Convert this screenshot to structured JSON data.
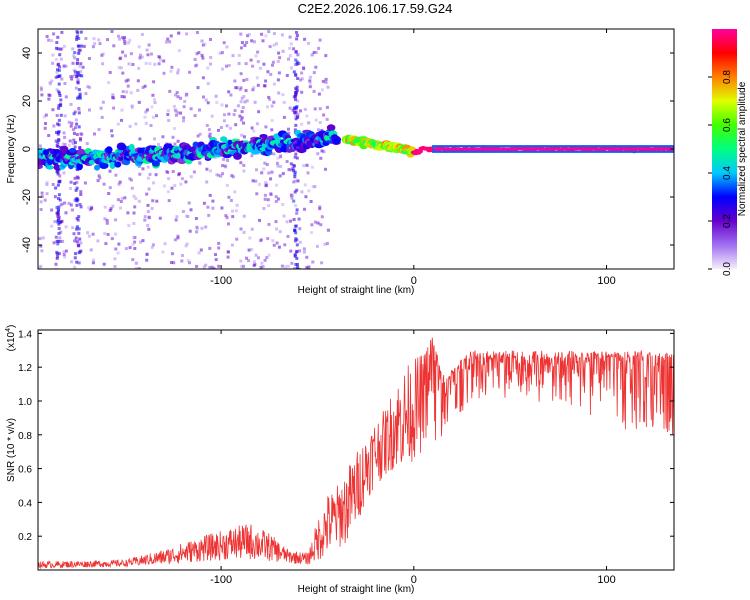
{
  "title": "C2E2.2026.106.17.59.G24",
  "chart_data": [
    {
      "type": "heatmap",
      "name": "spectrogram",
      "xlabel": "Height of straight line (km)",
      "ylabel": "Frequency (Hz)",
      "xlim": [
        -195,
        135
      ],
      "ylim": [
        -50,
        50
      ],
      "xticks": [
        -100,
        0,
        100
      ],
      "xtick_labels": [
        "-100",
        "0",
        "100"
      ],
      "yticks": [
        -40,
        -20,
        0,
        20,
        40
      ],
      "ytick_labels": [
        "-40",
        "-20",
        "0",
        "20",
        "40"
      ],
      "colorbar": {
        "label": "Normalized spectral amplitude",
        "range": [
          0,
          1
        ],
        "ticks": [
          0.0,
          0.2,
          0.4,
          0.6,
          0.8
        ],
        "tick_labels": [
          "0.0",
          "0.2",
          "0.4",
          "0.6",
          "0.8"
        ],
        "colors": [
          "#f4eefc",
          "#a070f0",
          "#6600cc",
          "#0000ff",
          "#00c8ff",
          "#00ff80",
          "#40ff00",
          "#e0ff00",
          "#ff8000",
          "#ff0000",
          "#ff00a0"
        ]
      },
      "center_line": {
        "x": [
          -195,
          -175,
          -150,
          -125,
          -100,
          -75,
          -55,
          -40,
          -33,
          -25,
          -15,
          -5,
          0,
          5,
          10,
          135
        ],
        "y": [
          -4,
          -4,
          -3,
          -2,
          0,
          2,
          3,
          5,
          4,
          3,
          1,
          0,
          -2,
          0,
          0,
          0
        ]
      },
      "spread_segments": [
        {
          "x": [
            -195,
            -40
          ],
          "amplitude_range": [
            0.15,
            0.5
          ],
          "freq_halfwidth": 5
        },
        {
          "x": [
            -35,
            0
          ],
          "amplitude_range": [
            0.5,
            0.8
          ],
          "freq_halfwidth": 2
        },
        {
          "x": [
            0,
            135
          ],
          "amplitude_range": [
            0.95,
            1.0
          ],
          "freq_halfwidth": 1
        }
      ]
    },
    {
      "type": "line",
      "name": "snr",
      "series": [
        {
          "name": "SNR",
          "color": "#ee3333"
        }
      ],
      "xlabel": "Height of straight line (km)",
      "ylabel": "SNR (10 * v/v)",
      "scale_label": "(x10",
      "scale_exponent": "4",
      "xlim": [
        -195,
        135
      ],
      "ylim": [
        0.0,
        1.42
      ],
      "xticks": [
        -100,
        0,
        100
      ],
      "xtick_labels": [
        "-100",
        "0",
        "100"
      ],
      "yticks": [
        0.2,
        0.4,
        0.6,
        0.8,
        1.0,
        1.2,
        1.4
      ],
      "ytick_labels": [
        "0.2",
        "0.4",
        "0.6",
        "0.8",
        "1.0",
        "1.2",
        "1.4"
      ],
      "envelope": {
        "x": [
          -195,
          -150,
          -130,
          -110,
          -95,
          -85,
          -75,
          -65,
          -55,
          -50,
          -45,
          -40,
          -35,
          -30,
          -25,
          -20,
          -15,
          -10,
          -5,
          0,
          5,
          10,
          15,
          20,
          25,
          30,
          40,
          50,
          70,
          90,
          110,
          120,
          135
        ],
        "upper": [
          0.05,
          0.06,
          0.12,
          0.2,
          0.25,
          0.28,
          0.22,
          0.12,
          0.1,
          0.3,
          0.45,
          0.5,
          0.6,
          0.7,
          0.8,
          0.9,
          0.95,
          1.1,
          1.2,
          1.25,
          1.3,
          1.4,
          1.15,
          1.2,
          1.25,
          1.3,
          1.3,
          1.3,
          1.3,
          1.3,
          1.3,
          1.3,
          1.3
        ],
        "lower": [
          0.01,
          0.02,
          0.03,
          0.05,
          0.06,
          0.06,
          0.05,
          0.04,
          0.03,
          0.05,
          0.08,
          0.12,
          0.15,
          0.25,
          0.4,
          0.5,
          0.55,
          0.6,
          0.6,
          0.65,
          0.7,
          0.75,
          0.8,
          0.85,
          0.9,
          0.95,
          1.0,
          1.0,
          1.0,
          0.95,
          0.85,
          0.75,
          0.75
        ]
      }
    }
  ]
}
